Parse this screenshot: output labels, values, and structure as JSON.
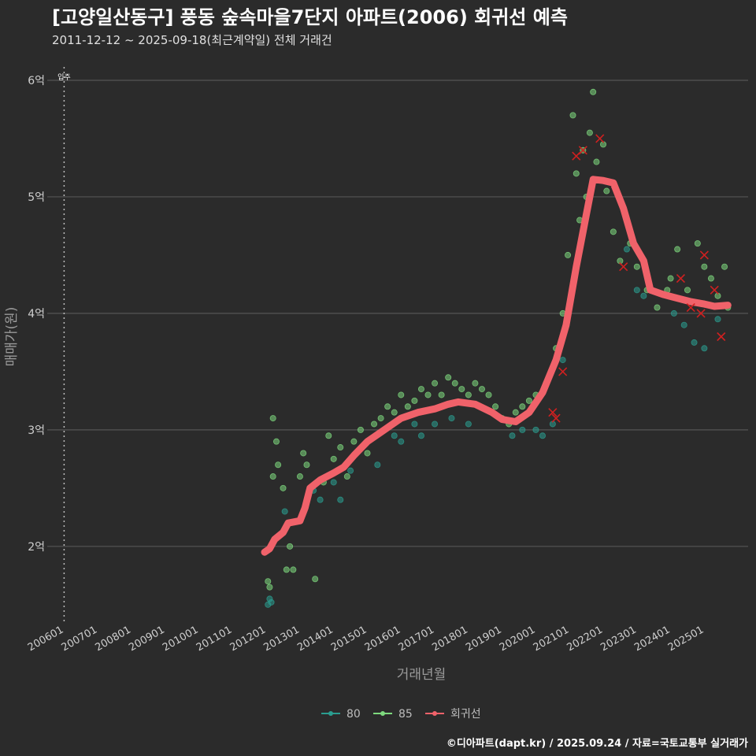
{
  "header": {
    "title": "[고양일산동구] 풍동 숲속마을7단지 아파트(2006) 회귀선 예측",
    "subtitle": "2011-12-12 ~ 2025-09-18(최근계약일) 전체 거래건"
  },
  "caption": "©디아파트(dapt.kr) / 2025.09.24 / 자료=국토교통부 실거래가",
  "colors": {
    "background": "#2b2b2b",
    "grid": "#555555",
    "series_80": "#2a9d8f",
    "series_85": "#7ed97e",
    "regression": "#f0626a",
    "cancel_mark": "#d02020"
  },
  "chart_data": {
    "type": "scatter",
    "title": "[고양일산동구] 풍동 숲속마을7단지 아파트(2006) 회귀선 예측",
    "xlabel": "거래년월",
    "ylabel": "매매가(원)",
    "x_ticks": [
      "200601",
      "200701",
      "200801",
      "200901",
      "201001",
      "201101",
      "201201",
      "201301",
      "201401",
      "201501",
      "201601",
      "201701",
      "201801",
      "201901",
      "202001",
      "202101",
      "202201",
      "202301",
      "202401",
      "202501"
    ],
    "y_ticks": [
      {
        "value": 2,
        "label": "2억"
      },
      {
        "value": 3,
        "label": "3억"
      },
      {
        "value": 4,
        "label": "4억"
      },
      {
        "value": 5,
        "label": "5억"
      },
      {
        "value": 6,
        "label": "6억"
      }
    ],
    "xlim": [
      2005.5,
      2026.3
    ],
    "ylim": [
      1.35,
      6.25
    ],
    "y_unit": "억",
    "grid": true,
    "legend_position": "bottom",
    "annotation": {
      "label": "입주",
      "x": 2006.0
    },
    "regression": {
      "name": "회귀선",
      "points": [
        [
          2011.95,
          1.95
        ],
        [
          2012.1,
          1.98
        ],
        [
          2012.25,
          2.06
        ],
        [
          2012.5,
          2.12
        ],
        [
          2012.65,
          2.2
        ],
        [
          2013.0,
          2.22
        ],
        [
          2013.15,
          2.33
        ],
        [
          2013.3,
          2.5
        ],
        [
          2013.6,
          2.57
        ],
        [
          2014.0,
          2.63
        ],
        [
          2014.3,
          2.68
        ],
        [
          2014.6,
          2.78
        ],
        [
          2015.0,
          2.9
        ],
        [
          2015.5,
          3.0
        ],
        [
          2016.0,
          3.1
        ],
        [
          2016.5,
          3.15
        ],
        [
          2017.0,
          3.18
        ],
        [
          2017.4,
          3.22
        ],
        [
          2017.7,
          3.24
        ],
        [
          2018.2,
          3.22
        ],
        [
          2018.7,
          3.15
        ],
        [
          2019.0,
          3.09
        ],
        [
          2019.4,
          3.07
        ],
        [
          2019.8,
          3.15
        ],
        [
          2020.2,
          3.32
        ],
        [
          2020.6,
          3.6
        ],
        [
          2020.9,
          3.9
        ],
        [
          2021.2,
          4.4
        ],
        [
          2021.5,
          4.85
        ],
        [
          2021.7,
          5.15
        ],
        [
          2022.0,
          5.14
        ],
        [
          2022.3,
          5.12
        ],
        [
          2022.6,
          4.9
        ],
        [
          2022.9,
          4.6
        ],
        [
          2023.2,
          4.45
        ],
        [
          2023.4,
          4.2
        ],
        [
          2023.8,
          4.16
        ],
        [
          2024.2,
          4.13
        ],
        [
          2024.6,
          4.1
        ],
        [
          2025.0,
          4.08
        ],
        [
          2025.3,
          4.06
        ],
        [
          2025.7,
          4.07
        ]
      ]
    },
    "series": [
      {
        "name": "80",
        "points": [
          [
            2012.05,
            1.5
          ],
          [
            2012.1,
            1.55
          ],
          [
            2012.15,
            1.52
          ],
          [
            2012.55,
            2.3
          ],
          [
            2013.4,
            2.48
          ],
          [
            2013.6,
            2.4
          ],
          [
            2014.0,
            2.55
          ],
          [
            2014.2,
            2.4
          ],
          [
            2014.5,
            2.65
          ],
          [
            2015.3,
            2.7
          ],
          [
            2015.8,
            2.95
          ],
          [
            2016.0,
            2.9
          ],
          [
            2016.4,
            3.05
          ],
          [
            2016.6,
            2.95
          ],
          [
            2017.0,
            3.05
          ],
          [
            2017.5,
            3.1
          ],
          [
            2018.0,
            3.05
          ],
          [
            2019.3,
            2.95
          ],
          [
            2019.6,
            3.0
          ],
          [
            2020.0,
            3.0
          ],
          [
            2020.2,
            2.95
          ],
          [
            2020.5,
            3.05
          ],
          [
            2020.8,
            3.6
          ],
          [
            2022.7,
            4.55
          ],
          [
            2023.0,
            4.2
          ],
          [
            2023.2,
            4.15
          ],
          [
            2024.1,
            4.0
          ],
          [
            2024.4,
            3.9
          ],
          [
            2024.7,
            3.75
          ],
          [
            2025.0,
            3.7
          ],
          [
            2025.4,
            3.95
          ]
        ]
      },
      {
        "name": "85",
        "points": [
          [
            2012.05,
            1.7
          ],
          [
            2012.1,
            1.65
          ],
          [
            2012.2,
            2.6
          ],
          [
            2012.2,
            3.1
          ],
          [
            2012.3,
            2.9
          ],
          [
            2012.35,
            2.7
          ],
          [
            2012.5,
            2.5
          ],
          [
            2012.6,
            1.8
          ],
          [
            2012.7,
            2.0
          ],
          [
            2012.8,
            1.8
          ],
          [
            2013.0,
            2.6
          ],
          [
            2013.1,
            2.8
          ],
          [
            2013.2,
            2.7
          ],
          [
            2013.45,
            1.72
          ],
          [
            2013.7,
            2.55
          ],
          [
            2013.85,
            2.95
          ],
          [
            2014.0,
            2.75
          ],
          [
            2014.2,
            2.85
          ],
          [
            2014.4,
            2.6
          ],
          [
            2014.6,
            2.9
          ],
          [
            2014.8,
            3.0
          ],
          [
            2015.0,
            2.8
          ],
          [
            2015.2,
            3.05
          ],
          [
            2015.4,
            3.1
          ],
          [
            2015.6,
            3.2
          ],
          [
            2015.8,
            3.15
          ],
          [
            2016.0,
            3.3
          ],
          [
            2016.2,
            3.2
          ],
          [
            2016.4,
            3.25
          ],
          [
            2016.6,
            3.35
          ],
          [
            2016.8,
            3.3
          ],
          [
            2017.0,
            3.4
          ],
          [
            2017.2,
            3.3
          ],
          [
            2017.4,
            3.45
          ],
          [
            2017.6,
            3.4
          ],
          [
            2017.8,
            3.35
          ],
          [
            2018.0,
            3.3
          ],
          [
            2018.2,
            3.4
          ],
          [
            2018.4,
            3.35
          ],
          [
            2018.6,
            3.3
          ],
          [
            2018.8,
            3.2
          ],
          [
            2019.0,
            3.1
          ],
          [
            2019.2,
            3.05
          ],
          [
            2019.4,
            3.15
          ],
          [
            2019.6,
            3.2
          ],
          [
            2019.8,
            3.25
          ],
          [
            2020.0,
            3.3
          ],
          [
            2020.3,
            3.4
          ],
          [
            2020.6,
            3.7
          ],
          [
            2020.8,
            4.0
          ],
          [
            2020.95,
            4.5
          ],
          [
            2021.1,
            5.7
          ],
          [
            2021.2,
            5.2
          ],
          [
            2021.3,
            4.8
          ],
          [
            2021.4,
            5.4
          ],
          [
            2021.5,
            5.0
          ],
          [
            2021.6,
            5.55
          ],
          [
            2021.7,
            5.9
          ],
          [
            2021.8,
            5.3
          ],
          [
            2022.0,
            5.45
          ],
          [
            2022.1,
            5.05
          ],
          [
            2022.3,
            4.7
          ],
          [
            2022.5,
            4.45
          ],
          [
            2022.8,
            4.6
          ],
          [
            2023.0,
            4.4
          ],
          [
            2023.3,
            4.2
          ],
          [
            2023.6,
            4.05
          ],
          [
            2023.9,
            4.2
          ],
          [
            2024.0,
            4.3
          ],
          [
            2024.2,
            4.55
          ],
          [
            2024.5,
            4.2
          ],
          [
            2024.8,
            4.6
          ],
          [
            2025.0,
            4.4
          ],
          [
            2025.2,
            4.3
          ],
          [
            2025.4,
            4.15
          ],
          [
            2025.6,
            4.4
          ],
          [
            2025.7,
            4.05
          ]
        ]
      }
    ],
    "cancelled": [
      [
        2020.5,
        3.15
      ],
      [
        2020.6,
        3.1
      ],
      [
        2020.8,
        3.5
      ],
      [
        2021.2,
        5.35
      ],
      [
        2021.4,
        5.4
      ],
      [
        2021.9,
        5.5
      ],
      [
        2022.6,
        4.4
      ],
      [
        2024.3,
        4.3
      ],
      [
        2024.6,
        4.05
      ],
      [
        2024.9,
        4.0
      ],
      [
        2025.0,
        4.5
      ],
      [
        2025.3,
        4.2
      ],
      [
        2025.5,
        3.8
      ]
    ]
  },
  "legend": {
    "items": [
      {
        "label": "80",
        "color": "#2a9d8f"
      },
      {
        "label": "85",
        "color": "#7ed97e"
      },
      {
        "label": "회귀선",
        "color": "#f0626a"
      }
    ]
  }
}
